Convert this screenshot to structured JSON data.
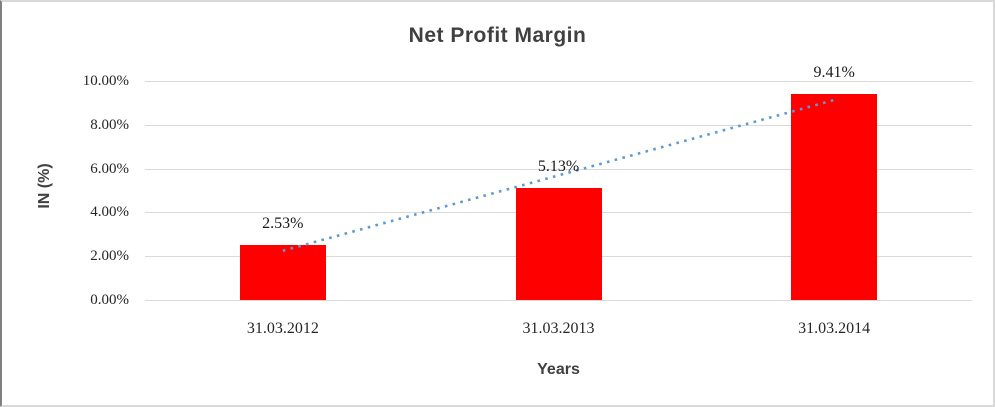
{
  "chart_data": {
    "type": "bar",
    "title": "Net Profit Margin",
    "categories": [
      "31.03.2012",
      "31.03.2013",
      "31.03.2014"
    ],
    "values": [
      2.53,
      5.13,
      9.41
    ],
    "data_labels": [
      "2.53%",
      "5.13%",
      "9.41%"
    ],
    "xlabel": "Years",
    "ylabel": "IN (%)",
    "ylim": [
      0,
      10
    ],
    "ytick_step": 2,
    "ytick_labels": [
      "0.00%",
      "2.00%",
      "4.00%",
      "6.00%",
      "8.00%",
      "10.00%"
    ],
    "grid": true,
    "legend": "none",
    "bar_color": "#ff0000",
    "grid_color": "#d9d9d9",
    "tick_text_color": "#262626",
    "title_color": "#404040",
    "trendline": {
      "type": "linear",
      "style": "dotted",
      "color": "#5b9bd5"
    }
  }
}
